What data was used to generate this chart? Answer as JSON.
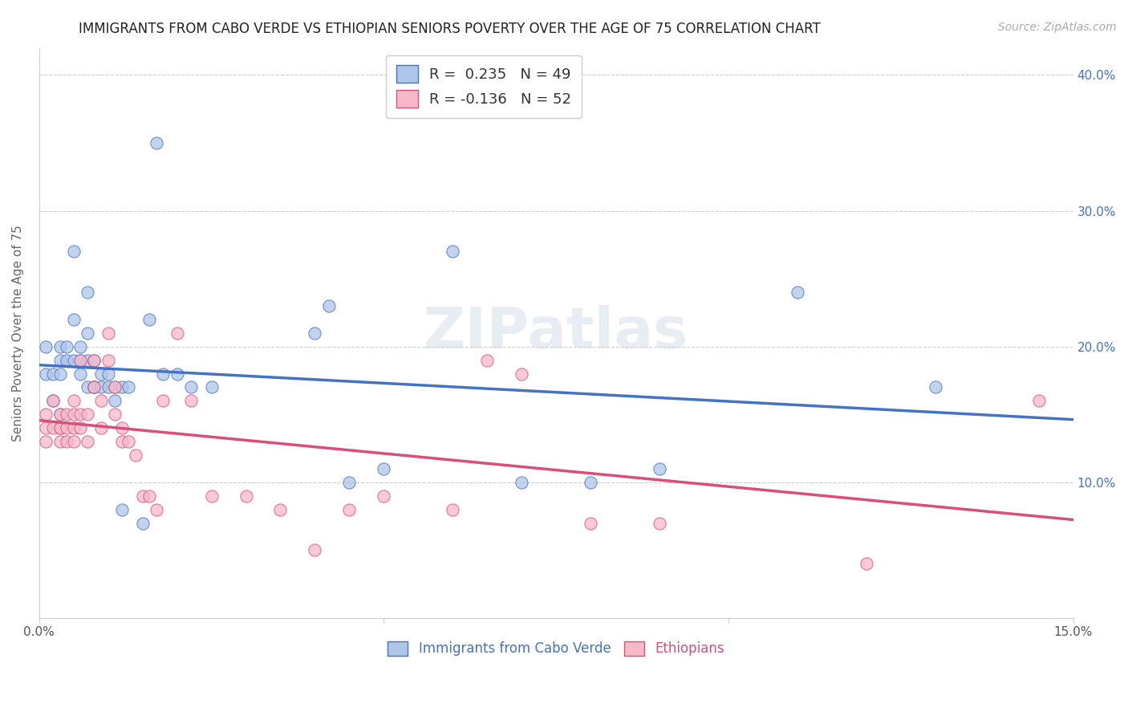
{
  "title": "IMMIGRANTS FROM CABO VERDE VS ETHIOPIAN SENIORS POVERTY OVER THE AGE OF 75 CORRELATION CHART",
  "source": "Source: ZipAtlas.com",
  "ylabel": "Seniors Poverty Over the Age of 75",
  "xlabel_cabo": "Immigrants from Cabo Verde",
  "xlabel_ethiopians": "Ethiopians",
  "xlim": [
    0.0,
    0.15
  ],
  "ylim": [
    0.0,
    0.42
  ],
  "cabo_R": 0.235,
  "cabo_N": 49,
  "ethiopian_R": -0.136,
  "ethiopian_N": 52,
  "cabo_color": "#aec6e8",
  "cabo_line_color": "#4472c4",
  "ethiopian_color": "#f7b8c8",
  "ethiopian_line_color": "#d94f7a",
  "watermark": "ZIPatlas",
  "cabo_x": [
    0.001,
    0.001,
    0.002,
    0.002,
    0.003,
    0.003,
    0.003,
    0.003,
    0.004,
    0.004,
    0.005,
    0.005,
    0.005,
    0.006,
    0.006,
    0.006,
    0.007,
    0.007,
    0.007,
    0.007,
    0.008,
    0.008,
    0.008,
    0.009,
    0.009,
    0.01,
    0.01,
    0.011,
    0.011,
    0.012,
    0.012,
    0.013,
    0.015,
    0.016,
    0.017,
    0.018,
    0.02,
    0.022,
    0.025,
    0.04,
    0.042,
    0.045,
    0.05,
    0.06,
    0.07,
    0.08,
    0.09,
    0.11,
    0.13
  ],
  "cabo_y": [
    0.18,
    0.2,
    0.18,
    0.16,
    0.2,
    0.19,
    0.18,
    0.15,
    0.2,
    0.19,
    0.27,
    0.22,
    0.19,
    0.2,
    0.19,
    0.18,
    0.24,
    0.21,
    0.19,
    0.17,
    0.19,
    0.17,
    0.17,
    0.18,
    0.17,
    0.18,
    0.17,
    0.17,
    0.16,
    0.17,
    0.08,
    0.17,
    0.07,
    0.22,
    0.35,
    0.18,
    0.18,
    0.17,
    0.17,
    0.21,
    0.23,
    0.1,
    0.11,
    0.27,
    0.1,
    0.1,
    0.11,
    0.24,
    0.17
  ],
  "ethiopian_x": [
    0.001,
    0.001,
    0.001,
    0.002,
    0.002,
    0.003,
    0.003,
    0.003,
    0.003,
    0.004,
    0.004,
    0.004,
    0.005,
    0.005,
    0.005,
    0.005,
    0.006,
    0.006,
    0.006,
    0.007,
    0.007,
    0.008,
    0.008,
    0.009,
    0.009,
    0.01,
    0.01,
    0.011,
    0.011,
    0.012,
    0.012,
    0.013,
    0.014,
    0.015,
    0.016,
    0.017,
    0.018,
    0.02,
    0.022,
    0.025,
    0.03,
    0.035,
    0.04,
    0.045,
    0.05,
    0.06,
    0.065,
    0.07,
    0.08,
    0.09,
    0.12,
    0.145
  ],
  "ethiopian_y": [
    0.15,
    0.14,
    0.13,
    0.16,
    0.14,
    0.15,
    0.14,
    0.14,
    0.13,
    0.15,
    0.14,
    0.13,
    0.16,
    0.15,
    0.14,
    0.13,
    0.19,
    0.15,
    0.14,
    0.15,
    0.13,
    0.19,
    0.17,
    0.16,
    0.14,
    0.21,
    0.19,
    0.17,
    0.15,
    0.14,
    0.13,
    0.13,
    0.12,
    0.09,
    0.09,
    0.08,
    0.16,
    0.21,
    0.16,
    0.09,
    0.09,
    0.08,
    0.05,
    0.08,
    0.09,
    0.08,
    0.19,
    0.18,
    0.07,
    0.07,
    0.04,
    0.16
  ]
}
